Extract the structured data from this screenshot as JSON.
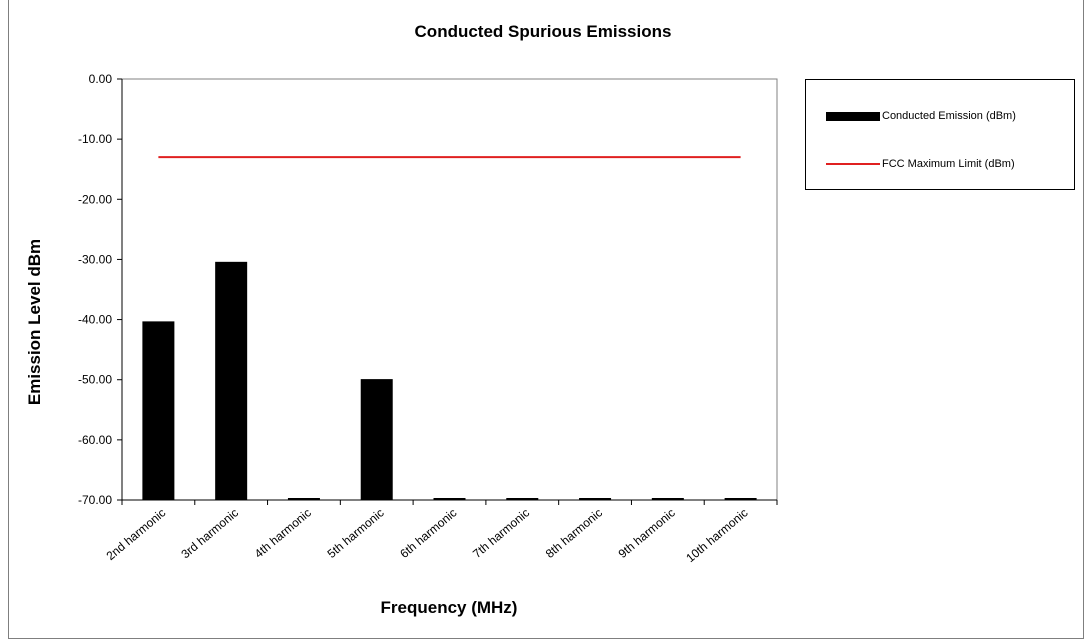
{
  "chart_data": {
    "type": "bar",
    "title": "Conducted Spurious Emissions",
    "xlabel": "Frequency (MHz)",
    "ylabel": "Emission Level dBm",
    "ylim": [
      -70,
      0
    ],
    "yticks": [
      "0.00",
      "-10.00",
      "-20.00",
      "-30.00",
      "-40.00",
      "-50.00",
      "-60.00",
      "-70.00"
    ],
    "categories": [
      "2nd harmonic",
      "3rd harmonic",
      "4th harmonic",
      "5th harmonic",
      "6th harmonic",
      "7th harmonic",
      "8th harmonic",
      "9th harmonic",
      "10th harmonic"
    ],
    "series": [
      {
        "name": "Conducted Emission (dBm)",
        "type": "bar",
        "color": "#000000",
        "values": [
          -40.3,
          -30.4,
          -70,
          -49.9,
          -70,
          -70,
          -70,
          -70,
          -70
        ]
      },
      {
        "name": "FCC Maximum Limit (dBm)",
        "type": "line",
        "color": "#e02020",
        "values": [
          -13,
          -13,
          -13,
          -13,
          -13,
          -13,
          -13,
          -13,
          -13
        ]
      }
    ],
    "legend_position": "right",
    "grid": false
  }
}
